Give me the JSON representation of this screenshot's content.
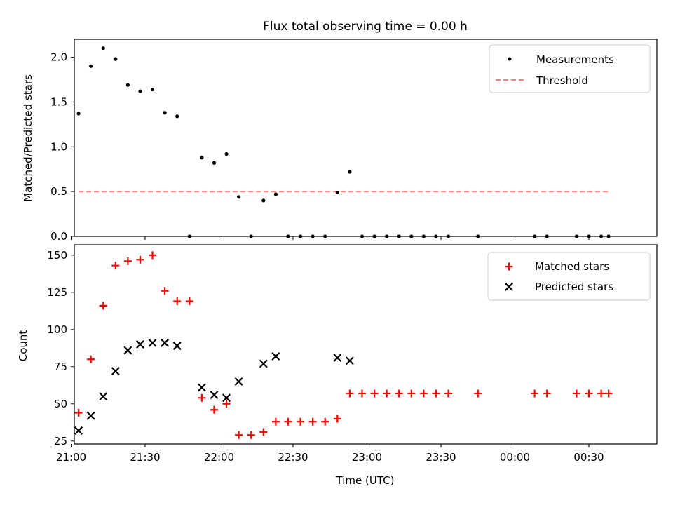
{
  "title": "Flux total observing time = 0.00 h",
  "chart_data": [
    {
      "type": "scatter",
      "title": "Flux total observing time = 0.00 h",
      "xlabel": "",
      "ylabel": "Matched/Predicted stars",
      "ylim": [
        0,
        2.2
      ],
      "yticks": [
        "0.0",
        "0.5",
        "1.0",
        "1.5",
        "2.0"
      ],
      "legend_position": "top-right",
      "series": [
        {
          "name": "Measurements",
          "marker": "dot",
          "color": "#000000",
          "times": [
            "21:03",
            "21:08",
            "21:13",
            "21:18",
            "21:23",
            "21:28",
            "21:33",
            "21:38",
            "21:43",
            "21:48",
            "21:53",
            "21:58",
            "22:03",
            "22:08",
            "22:13",
            "22:18",
            "22:23",
            "22:28",
            "22:33",
            "22:38",
            "22:43",
            "22:48",
            "22:53",
            "22:58",
            "23:03",
            "23:08",
            "23:13",
            "23:18",
            "23:23",
            "23:28",
            "23:33",
            "23:45",
            "00:08",
            "00:13",
            "00:25",
            "00:30",
            "00:35",
            "00:38"
          ],
          "values": [
            1.37,
            1.9,
            2.1,
            1.98,
            1.69,
            1.62,
            1.64,
            1.38,
            1.34,
            0,
            0.88,
            0.82,
            0.92,
            0.44,
            0,
            0.4,
            0.47,
            0,
            0,
            0,
            0,
            0.49,
            0.72,
            0,
            0,
            0,
            0,
            0,
            0,
            0,
            0,
            0,
            0,
            0,
            0,
            0,
            0,
            0
          ]
        },
        {
          "name": "Threshold",
          "kind": "dashed-line",
          "color": "#ff7f7f",
          "times": [
            "21:03",
            "00:38"
          ],
          "values": [
            0.5,
            0.5
          ]
        }
      ]
    },
    {
      "type": "scatter",
      "xlabel": "Time (UTC)",
      "ylabel": "Count",
      "ylim": [
        23,
        157
      ],
      "yticks": [
        "25",
        "50",
        "75",
        "100",
        "125",
        "150"
      ],
      "xticks": [
        "21:00",
        "21:30",
        "22:00",
        "22:30",
        "23:00",
        "23:30",
        "00:00",
        "00:30"
      ],
      "legend_position": "top-right",
      "series": [
        {
          "name": "Matched stars",
          "marker": "plus",
          "color": "#ff0000",
          "times": [
            "21:03",
            "21:08",
            "21:13",
            "21:18",
            "21:23",
            "21:28",
            "21:33",
            "21:38",
            "21:43",
            "21:48",
            "21:53",
            "21:58",
            "22:03",
            "22:08",
            "22:13",
            "22:18",
            "22:23",
            "22:28",
            "22:33",
            "22:38",
            "22:43",
            "22:48",
            "22:53",
            "22:58",
            "23:03",
            "23:08",
            "23:13",
            "23:18",
            "23:23",
            "23:28",
            "23:33",
            "23:45",
            "00:08",
            "00:13",
            "00:25",
            "00:30",
            "00:35",
            "00:38"
          ],
          "values": [
            44,
            80,
            116,
            143,
            146,
            147,
            150,
            126,
            119,
            119,
            54,
            46,
            50,
            29,
            29,
            31,
            38,
            38,
            38,
            38,
            38,
            40,
            57,
            57,
            57,
            57,
            57,
            57,
            57,
            57,
            57,
            57,
            57,
            57,
            57,
            57,
            57,
            57
          ]
        },
        {
          "name": "Predicted stars",
          "marker": "x",
          "color": "#000000",
          "times": [
            "21:03",
            "21:08",
            "21:13",
            "21:18",
            "21:23",
            "21:28",
            "21:33",
            "21:38",
            "21:43",
            "21:53",
            "21:58",
            "22:03",
            "22:08",
            "22:18",
            "22:23",
            "22:48",
            "22:53"
          ],
          "values": [
            32,
            42,
            55,
            72,
            86,
            90,
            91,
            91,
            89,
            61,
            56,
            54,
            65,
            77,
            82,
            81,
            79
          ]
        }
      ]
    }
  ]
}
